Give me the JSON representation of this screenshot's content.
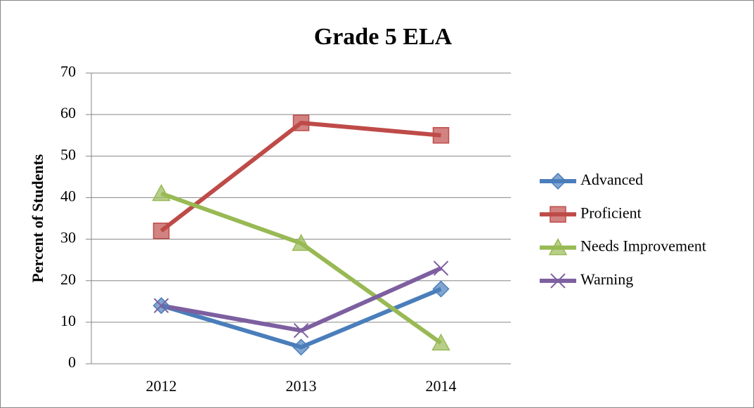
{
  "chart_data": {
    "type": "line",
    "title": "Grade 5 ELA",
    "y_label": "Percent of Students",
    "categories": [
      "2012",
      "2013",
      "2014"
    ],
    "series": [
      {
        "name": "Advanced",
        "color": "#4a7ebb",
        "marker": "diamond",
        "values": [
          14,
          4,
          18
        ]
      },
      {
        "name": "Proficient",
        "color": "#be4b48",
        "marker": "square",
        "values": [
          32,
          58,
          55
        ]
      },
      {
        "name": "Needs Improvement",
        "color": "#98b954",
        "marker": "triangle",
        "values": [
          41,
          29,
          5
        ]
      },
      {
        "name": "Warning",
        "color": "#7d5fa0",
        "marker": "x",
        "values": [
          14,
          8,
          23
        ]
      }
    ],
    "ylim": [
      0,
      70
    ],
    "yticks": [
      0,
      10,
      20,
      30,
      40,
      50,
      60,
      70
    ],
    "grid": true,
    "legend": "right"
  }
}
